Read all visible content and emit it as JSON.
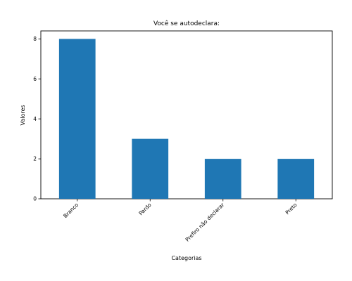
{
  "chart_data": {
    "type": "bar",
    "title": "Você se autodeclara:",
    "xlabel": "Categorias",
    "ylabel": "Valores",
    "categories": [
      "Branco",
      "Pardo",
      "Prefiro não declarar",
      "Preto"
    ],
    "values": [
      8,
      3,
      2,
      2
    ],
    "ylim": [
      0,
      8.4
    ],
    "yticks": [
      0,
      2,
      4,
      6,
      8
    ],
    "grid": false,
    "bar_color": "#1f77b4"
  }
}
